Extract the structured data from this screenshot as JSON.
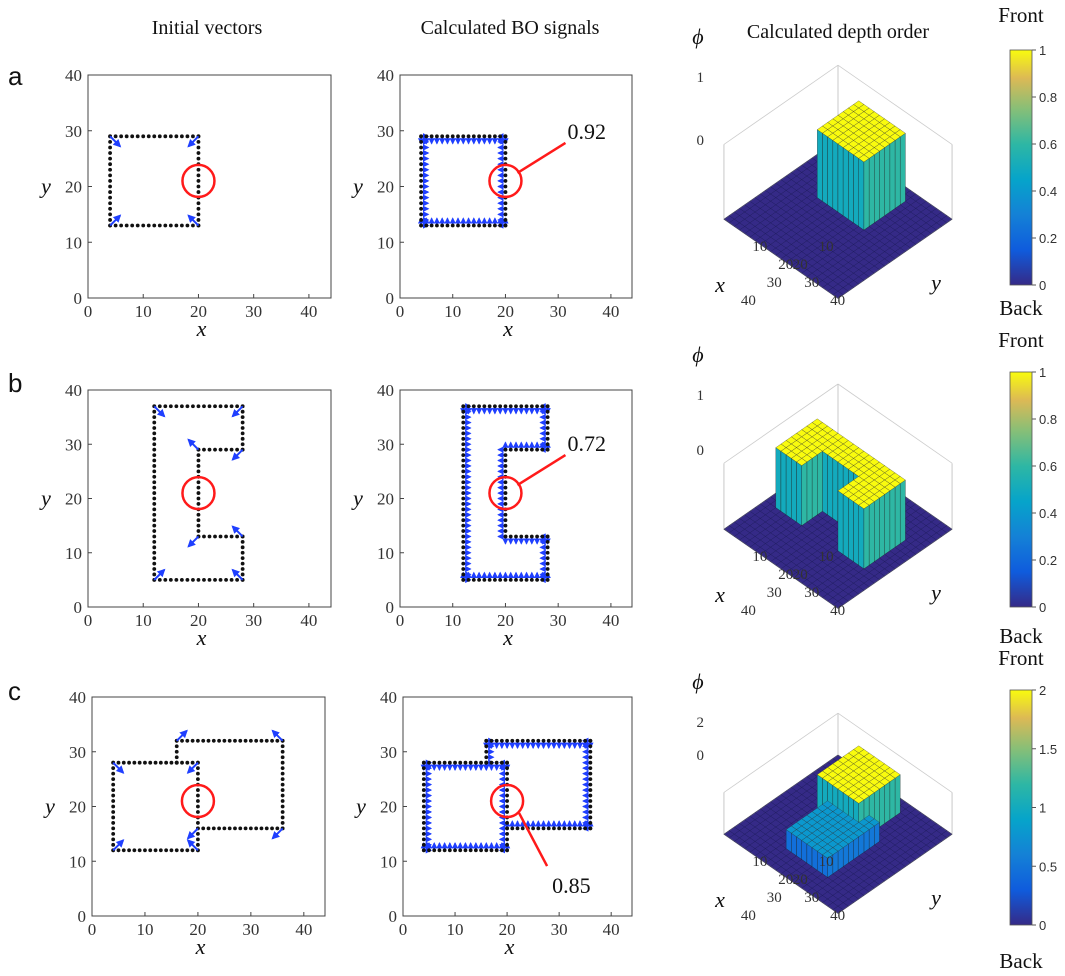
{
  "headers": {
    "col1": "Initial vectors",
    "col2": "Calculated BO signals",
    "col3": "Calculated depth order"
  },
  "rows": {
    "a": {
      "label": "a",
      "annotation": "0.92"
    },
    "b": {
      "label": "b",
      "annotation": "0.72"
    },
    "c": {
      "label": "c",
      "annotation": "0.85"
    }
  },
  "axes2d": {
    "xlabel": "x",
    "ylabel": "y",
    "xlim": [
      0,
      44
    ],
    "ylim": [
      0,
      40
    ],
    "xticks": [
      0,
      10,
      20,
      30,
      40
    ],
    "yticks": [
      0,
      10,
      20,
      30,
      40
    ]
  },
  "axes3d": {
    "xlabel": "x",
    "ylabel": "y",
    "zlabel": "ϕ",
    "xticks": [
      10,
      20,
      30,
      40
    ],
    "yticks": [
      10,
      20,
      30,
      40
    ]
  },
  "colorbars": {
    "a": {
      "top": "Front",
      "bottom": "Back",
      "ticks": [
        "1",
        "0.8",
        "0.6",
        "0.4",
        "0.2",
        "0"
      ]
    },
    "b": {
      "top": "Front",
      "bottom": "Back",
      "ticks": [
        "1",
        "0.8",
        "0.6",
        "0.4",
        "0.2",
        "0"
      ]
    },
    "c": {
      "top": "Front",
      "bottom": "Back",
      "ticks": [
        "2",
        "1.5",
        "1",
        "0.5",
        "0"
      ]
    }
  },
  "zticks3d": {
    "a": [
      "1",
      "0"
    ],
    "b": [
      "1",
      "0"
    ],
    "c": [
      "2",
      "0"
    ]
  },
  "colors": {
    "boundary_dots": "#111111",
    "vectors": "#1f3fff",
    "highlight_circle": "#ff1a1a",
    "surface_low": "#3e2a8f",
    "surface_high": "#f5d631",
    "surface_mid": "#2ba8a0",
    "colormap": "parula"
  },
  "shapes": {
    "a": {
      "type": "square",
      "x_range": [
        4,
        20
      ],
      "y_range": [
        13,
        29
      ],
      "circle_at": [
        20,
        21
      ]
    },
    "b": {
      "type": "C-shape",
      "x_range": [
        12,
        28
      ],
      "y_range": [
        5,
        37
      ],
      "circle_at": [
        20,
        21
      ]
    },
    "c": {
      "type": "overlapping squares",
      "rect1": {
        "x_range": [
          4,
          20
        ],
        "y_range": [
          12,
          28
        ]
      },
      "rect2": {
        "x_range": [
          16,
          36
        ],
        "y_range": [
          16,
          32
        ]
      },
      "circle_at": [
        20,
        21
      ]
    }
  }
}
